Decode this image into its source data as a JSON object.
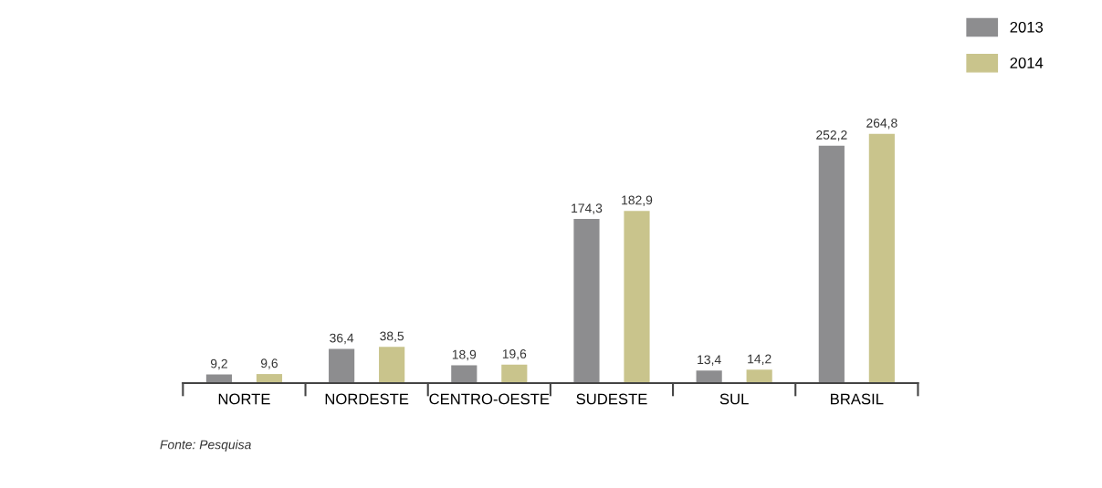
{
  "chart_data": {
    "type": "bar",
    "categories": [
      "NORTE",
      "NORDESTE",
      "CENTRO-OESTE",
      "SUDESTE",
      "SUL",
      "BRASIL"
    ],
    "series": [
      {
        "name": "2013",
        "color": "#8d8d8f",
        "values": [
          9.2,
          36.4,
          18.9,
          174.3,
          13.4,
          252.2
        ],
        "value_labels": [
          "9,2",
          "36,4",
          "18,9",
          "174,3",
          "13,4",
          "252,2"
        ]
      },
      {
        "name": "2014",
        "color": "#c9c48c",
        "values": [
          9.6,
          38.5,
          19.6,
          182.9,
          14.2,
          264.8
        ],
        "value_labels": [
          "9,6",
          "38,5",
          "19,6",
          "182,9",
          "14,2",
          "264,8"
        ]
      }
    ],
    "legend": "top right",
    "grid": false,
    "annotations": [
      "Fonte: Pesquisa"
    ]
  }
}
